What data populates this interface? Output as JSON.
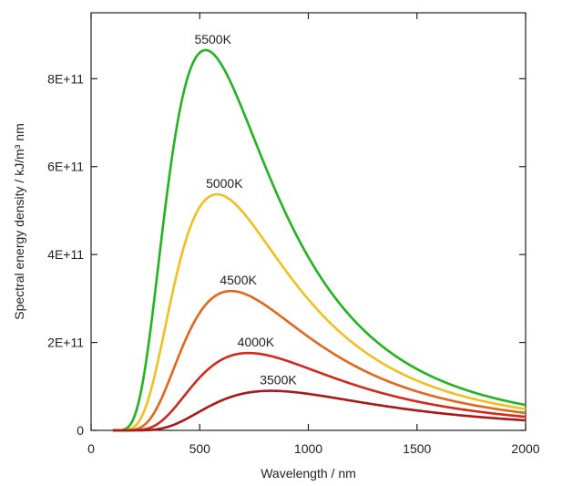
{
  "chart_data": {
    "type": "line",
    "title": "",
    "xlabel": "Wavelength / nm",
    "ylabel": "Spectral energy density / kJ/m³ nm",
    "xlim": [
      0,
      2000
    ],
    "ylim": [
      0,
      950000000000
    ],
    "x_ticks": [
      0,
      500,
      1000,
      1500,
      2000
    ],
    "x_tick_labels": [
      "0",
      "500",
      "1000",
      "1500",
      "2000"
    ],
    "y_ticks": [
      0,
      200000000000,
      400000000000,
      600000000000,
      800000000000
    ],
    "y_tick_labels": [
      "0",
      "2E+11",
      "4E+11",
      "6E+11",
      "8E+11"
    ],
    "grid": false,
    "legend": "none",
    "series": [
      {
        "name": "5500K",
        "temperature_K": 5500,
        "color": "#22b41e",
        "peak_x": 527,
        "peak_y": 865000000000
      },
      {
        "name": "5000K",
        "temperature_K": 5000,
        "color": "#f0c020",
        "peak_x": 580,
        "peak_y": 537000000000
      },
      {
        "name": "4500K",
        "temperature_K": 4500,
        "color": "#e2661c",
        "peak_x": 644,
        "peak_y": 317000000000
      },
      {
        "name": "4000K",
        "temperature_K": 4000,
        "color": "#d02a1c",
        "peak_x": 725,
        "peak_y": 176000000000
      },
      {
        "name": "3500K",
        "temperature_K": 3500,
        "color": "#a81818",
        "peak_x": 828,
        "peak_y": 90000000000
      }
    ]
  }
}
